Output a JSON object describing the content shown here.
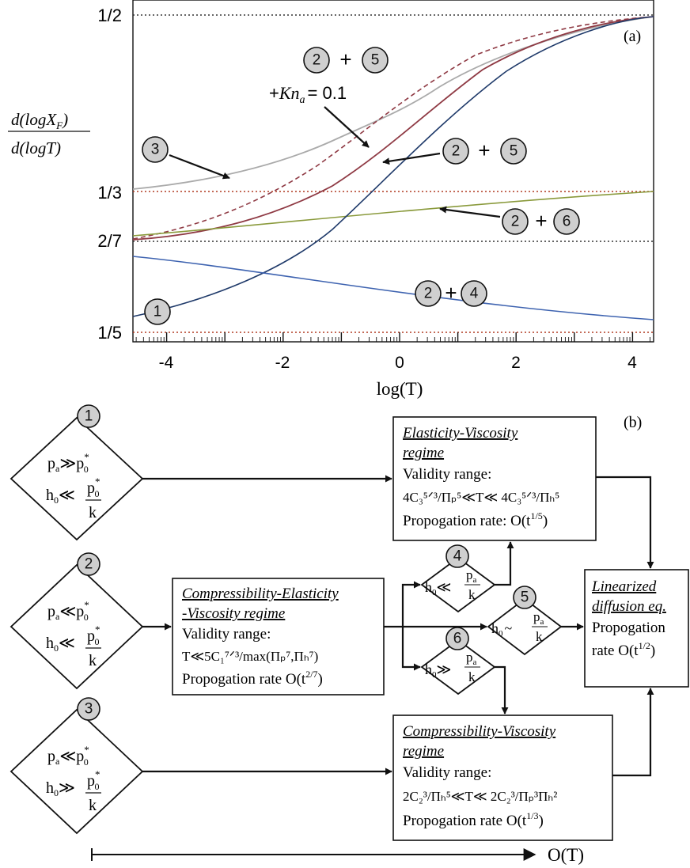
{
  "panel_a": {
    "panel_label": "(a)",
    "y_label_numerator": "d(logX",
    "y_label_numerator_sub": "F",
    "y_label_numerator_close": ")",
    "y_label_denominator": "d(logƬ)",
    "y_ticks": [
      "1/2",
      "1/3",
      "2/7",
      "1/5"
    ],
    "x_ticks": [
      "-4",
      "-2",
      "0",
      "2",
      "4"
    ],
    "x_label": "log(Ƭ)",
    "annot_plus": "+",
    "annot_kn_prefix": "+",
    "annot_kn_var": "Kn",
    "annot_kn_sub": "a",
    "annot_kn_eq": "= 0.1",
    "colors": {
      "curve_1": "#1f3a6a",
      "curve_2_4": "#3e63b0",
      "curve_2_5": "#8f3a44",
      "curve_2_5_kn": "#8f3a44",
      "curve_2_6": "#8a9a3c",
      "curve_3": "#aaaaaa",
      "ref_dotted": "#333333",
      "ref_red": "#b03a20"
    }
  },
  "panel_b": {
    "panel_label": "(b)",
    "bubbles": [
      "1",
      "2",
      "3",
      "4",
      "5",
      "6"
    ],
    "diamonds": {
      "d1_row1_lhs": "p",
      "d1_row1_sub": "a",
      "d1_row1_rel": "≫",
      "d1_row1_rhs": "p",
      "d1_row1_rhs_sup": "*",
      "d1_row1_rhs_sub": "0",
      "d1_row2_lhs": "h",
      "d1_row2_sub": "0",
      "d1_row2_rel": "≪",
      "d1_frac_num": "p",
      "d1_frac_num_sup": "*",
      "d1_frac_num_sub": "0",
      "d1_frac_den": "k",
      "d2_row1_rel": "≪",
      "d2_row2_rel": "≪",
      "d3_row1_rel": "≪",
      "d3_row2_rel": "≫",
      "d4_rel": "≪",
      "d5_rel": "~",
      "d6_rel": "≫",
      "small_frac_num": "p",
      "small_frac_num_sub": "a",
      "small_frac_den": "k"
    },
    "box_ev": {
      "title_line1": "Elasticity-Viscosity",
      "title_line2": "regime",
      "validity": "Validity range:",
      "range": "4C₃⁵ᐟ³/Πₚ⁵≪Ƭ≪ 4C₃⁵ᐟ³/Πₕ⁵",
      "rate_prefix": "Propogation rate: O(t",
      "rate_exp": "1/5",
      "rate_suffix": ")"
    },
    "box_cev": {
      "title_line1": "Compressibility-Elasticity",
      "title_line2": "-Viscosity regime",
      "validity": "Validity range:",
      "range": "Ƭ≪5C₁⁷ᐟ³/max(Πₚ⁷,Πₕ⁷)",
      "rate_prefix": "Propogation rate  O(t",
      "rate_exp": "2/7",
      "rate_suffix": ")"
    },
    "box_cv": {
      "title_line1": "Compressibility-Viscosity",
      "title_line2": "regime",
      "validity": "Validity range:",
      "range": "2C₂³/Πₕ⁵≪Ƭ≪ 2C₂³/Πₚ³Πₕ²",
      "rate_prefix": "Propogation rate O(t",
      "rate_exp": "1/3",
      "rate_suffix": ")"
    },
    "box_ld": {
      "title_line1": "Linearized",
      "title_line2": "diffusion eq.",
      "line3": "Propogation",
      "rate_prefix": "rate O(t",
      "rate_exp": "1/2",
      "rate_suffix": ")"
    },
    "time_axis_label": "O(Ƭ)"
  }
}
